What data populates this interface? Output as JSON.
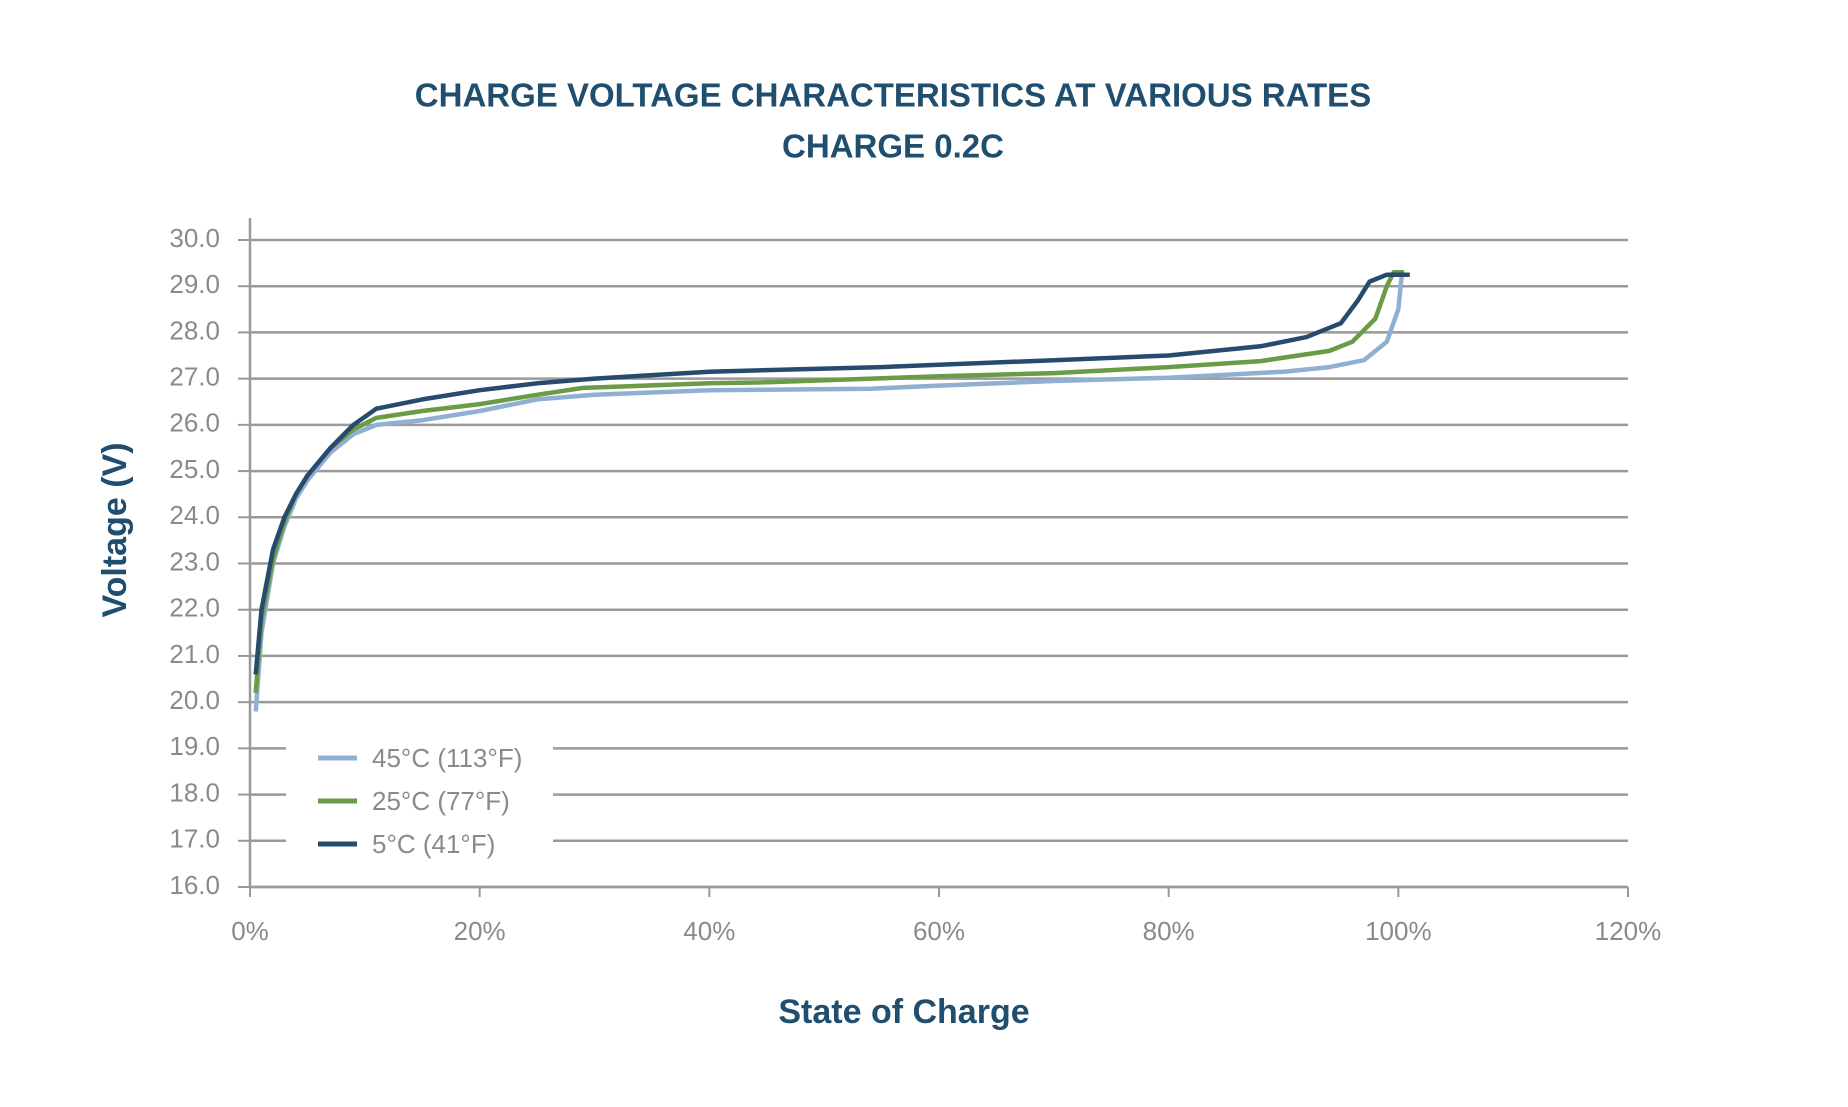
{
  "chart_data": {
    "type": "line",
    "title": "CHARGE VOLTAGE CHARACTERISTICS AT VARIOUS RATES",
    "subtitle": "CHARGE 0.2C",
    "x_label": "State of Charge",
    "y_label": "Voltage (V)",
    "xlim": [
      0,
      120
    ],
    "xticks": [
      {
        "value": 0,
        "label": "0%"
      },
      {
        "value": 20,
        "label": "20%"
      },
      {
        "value": 40,
        "label": "40%"
      },
      {
        "value": 60,
        "label": "60%"
      },
      {
        "value": 80,
        "label": "80%"
      },
      {
        "value": 100,
        "label": "100%"
      },
      {
        "value": 120,
        "label": "120%"
      }
    ],
    "ylim": [
      16,
      30
    ],
    "yticks": [
      {
        "value": 16,
        "label": "16.0"
      },
      {
        "value": 17,
        "label": "17.0"
      },
      {
        "value": 18,
        "label": "18.0"
      },
      {
        "value": 19,
        "label": "19.0"
      },
      {
        "value": 20,
        "label": "20.0"
      },
      {
        "value": 21,
        "label": "21.0"
      },
      {
        "value": 22,
        "label": "22.0"
      },
      {
        "value": 23,
        "label": "23.0"
      },
      {
        "value": 24,
        "label": "24.0"
      },
      {
        "value": 25,
        "label": "25.0"
      },
      {
        "value": 26,
        "label": "26.0"
      },
      {
        "value": 27,
        "label": "27.0"
      },
      {
        "value": 28,
        "label": "28.0"
      },
      {
        "value": 29,
        "label": "29.0"
      },
      {
        "value": 30,
        "label": "30.0"
      }
    ],
    "grid": true,
    "legend": "lower left",
    "series": [
      {
        "name": "45°C (113°F)",
        "color": "#8fb0d3",
        "x": [
          0.5,
          1,
          2,
          3,
          4,
          5,
          7,
          9,
          11,
          15,
          20,
          25,
          30,
          40,
          54,
          60,
          70,
          80,
          90,
          94,
          97,
          99,
          100,
          100.3
        ],
        "values": [
          19.8,
          21.5,
          23,
          23.8,
          24.4,
          24.8,
          25.4,
          25.8,
          26.0,
          26.1,
          26.3,
          26.55,
          26.65,
          26.75,
          26.78,
          26.85,
          26.95,
          27.02,
          27.15,
          27.25,
          27.4,
          27.8,
          28.5,
          29.25
        ]
      },
      {
        "name": "25°C (77°F)",
        "color": "#6a9b46",
        "x": [
          0.5,
          1,
          2,
          3,
          4,
          5,
          7,
          9,
          11,
          15,
          20,
          25,
          29,
          40,
          45,
          60,
          70,
          80,
          88,
          94,
          96,
          98,
          99,
          99.6,
          100.5
        ],
        "values": [
          20.2,
          21.8,
          23.1,
          23.9,
          24.5,
          24.9,
          25.5,
          25.9,
          26.15,
          26.3,
          26.45,
          26.65,
          26.8,
          26.9,
          26.92,
          27.05,
          27.12,
          27.25,
          27.38,
          27.6,
          27.8,
          28.3,
          29,
          29.3,
          29.3
        ]
      },
      {
        "name": "5°C (41°F)",
        "color": "#264b6e",
        "x": [
          0.5,
          1,
          2,
          3,
          4,
          5,
          7,
          9,
          11,
          15,
          20,
          25,
          30,
          40,
          55,
          70,
          80,
          88,
          92,
          95,
          96.5,
          97.5,
          99,
          101
        ],
        "values": [
          20.6,
          22,
          23.3,
          24.0,
          24.5,
          24.9,
          25.5,
          26.0,
          26.35,
          26.55,
          26.75,
          26.9,
          27.0,
          27.15,
          27.25,
          27.4,
          27.5,
          27.7,
          27.9,
          28.2,
          28.7,
          29.1,
          29.25,
          29.25
        ]
      }
    ]
  }
}
